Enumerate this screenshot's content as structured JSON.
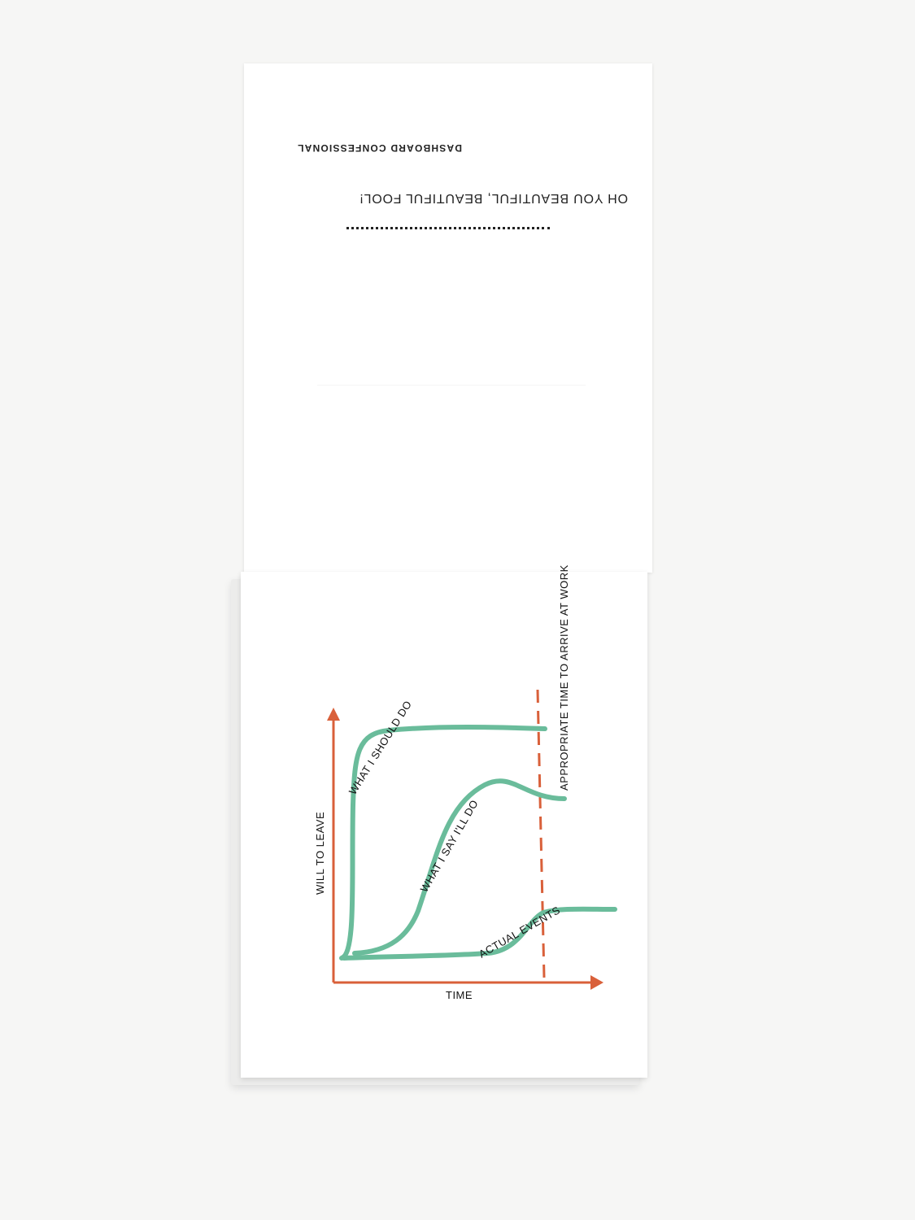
{
  "top_page": {
    "credit": "DASHBOARD CONFESSIONAL",
    "quote": "OH YOU BEAUTIFUL, BEAUTIFUL FOOL!"
  },
  "chart_data": {
    "type": "line",
    "xlabel": "TIME",
    "ylabel": "WILL TO LEAVE",
    "reference_line": {
      "label": "APPROPRIATE TIME TO ARRIVE AT WORK",
      "style": "dashed"
    },
    "series": [
      {
        "name": "WHAT I SHOULD DO"
      },
      {
        "name": "WHAT I SAY I'LL DO"
      },
      {
        "name": "ACTUAL EVENTS"
      }
    ],
    "colors": {
      "axis": "#d9603a",
      "curve": "#6abc9b",
      "reference": "#d9603a",
      "text": "#111111"
    }
  }
}
